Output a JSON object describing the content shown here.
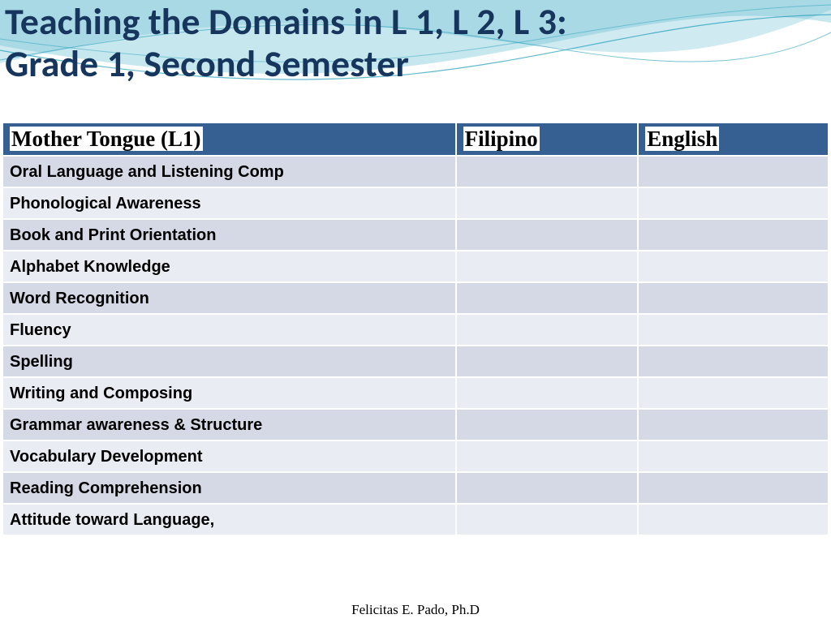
{
  "title": "Teaching the Domains in L 1, L 2, L 3:\n Grade 1, Second Semester",
  "title_color": "#17365d",
  "header": {
    "cells": [
      "Mother Tongue  (L1)",
      "Filipino",
      "English"
    ],
    "bg": "#366092",
    "text_bg": "#ffffff",
    "text_color": "#000000"
  },
  "rows": [
    "Oral Language and Listening Comp",
    "Phonological Awareness",
    "Book and Print Orientation",
    "Alphabet Knowledge",
    "Word Recognition",
    "Fluency",
    "Spelling",
    "Writing and Composing",
    "Grammar awareness & Structure",
    "Vocabulary Development",
    "Reading Comprehension",
    "Attitude toward Language,"
  ],
  "row_colors": {
    "even": "#d5d9e6",
    "odd": "#eaecf3"
  },
  "footer": "Felicitas E. Pado, Ph.D",
  "wave": {
    "fill1": "#a7d9e6",
    "fill2": "#5fb9cf",
    "line": "#1a9bb8"
  }
}
